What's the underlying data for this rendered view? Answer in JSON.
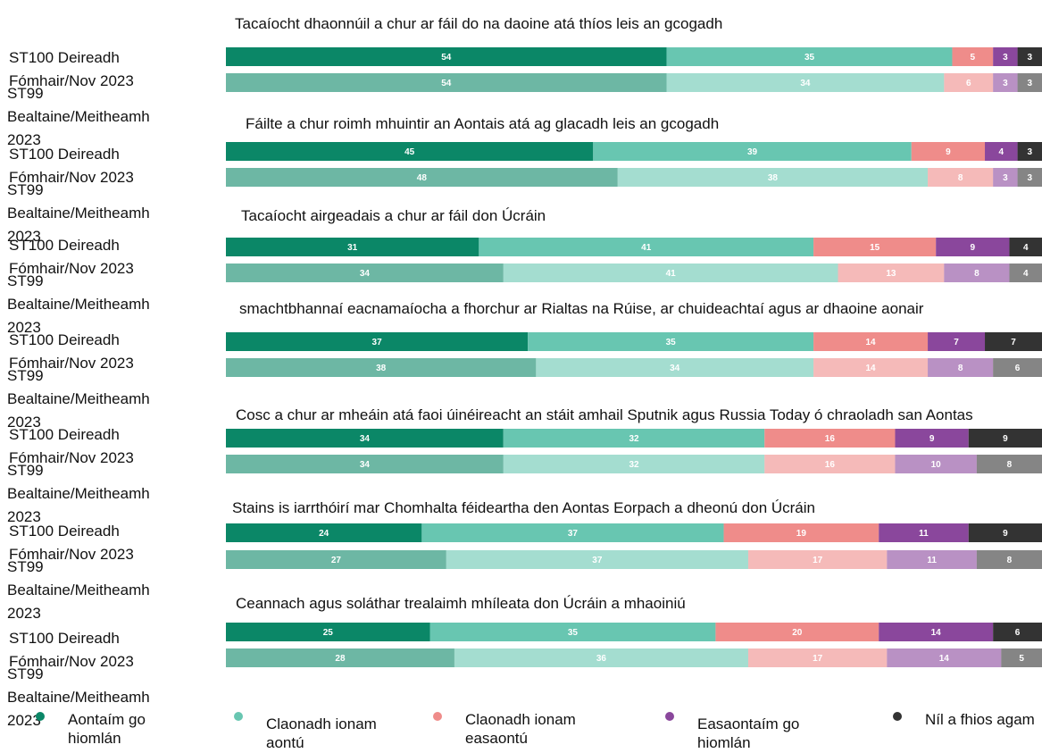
{
  "chart_data": {
    "type": "bar",
    "orientation": "horizontal",
    "stacked": true,
    "legend": "bottom",
    "xlim": [
      0,
      100
    ],
    "series": [
      {
        "name": "Aontaím go hiomlán",
        "color": "#0b8767"
      },
      {
        "name": "Claonadh ionam aontú",
        "color": "#68c6b1"
      },
      {
        "name": "Claonadh ionam easaontú",
        "color": "#ef8c8a"
      },
      {
        "name": "Easaontaím go hiomlán",
        "color": "#8a479c"
      },
      {
        "name": "Níl a fhios agam",
        "color": "#333333"
      }
    ],
    "groups": [
      {
        "title": "Tacaíocht dhaonnúil a chur ar fáil do na daoine atá thíos leis an gcogadh",
        "rows": [
          {
            "label": "ST100 Deireadh Fómhair/Nov 2023",
            "values": [
              54,
              35,
              5,
              3,
              3
            ]
          },
          {
            "label": "ST99 Bealtaine/Meitheamh 2023",
            "values": [
              54,
              34,
              6,
              3,
              3
            ]
          }
        ]
      },
      {
        "title": "Fáilte a chur roimh mhuintir an Aontais atá ag glacadh leis an gcogadh",
        "rows": [
          {
            "label": "ST100 Deireadh Fómhair/Nov 2023",
            "values": [
              45,
              39,
              9,
              4,
              3
            ]
          },
          {
            "label": "ST99 Bealtaine/Meitheamh 2023",
            "values": [
              48,
              38,
              8,
              3,
              3
            ]
          }
        ]
      },
      {
        "title": "Tacaíocht airgeadais a chur ar fáil don Úcráin",
        "rows": [
          {
            "label": "ST100 Deireadh Fómhair/Nov 2023",
            "values": [
              31,
              41,
              15,
              9,
              4
            ]
          },
          {
            "label": "ST99 Bealtaine/Meitheamh 2023",
            "values": [
              34,
              41,
              13,
              8,
              4
            ]
          }
        ]
      },
      {
        "title": "smachtbhannaí eacnamaíocha a fhorchur ar Rialtas na Rúise, ar chuideachtaí agus ar dhaoine aonair",
        "rows": [
          {
            "label": "ST100 Deireadh Fómhair/Nov 2023",
            "values": [
              37,
              35,
              14,
              7,
              7
            ]
          },
          {
            "label": "ST99 Bealtaine/Meitheamh 2023",
            "values": [
              38,
              34,
              14,
              8,
              6
            ]
          }
        ]
      },
      {
        "title": "Cosc a chur ar mheáin atá faoi úinéireacht an stáit amhail Sputnik agus Russia Today ó chraoladh san Aontas",
        "rows": [
          {
            "label": "ST100 Deireadh Fómhair/Nov 2023",
            "values": [
              34,
              32,
              16,
              9,
              9
            ]
          },
          {
            "label": "ST99 Bealtaine/Meitheamh 2023",
            "values": [
              34,
              32,
              16,
              10,
              8
            ]
          }
        ]
      },
      {
        "title": "Stains is iarrthóirí mar Chomhalta féideartha den Aontas Eorpach a dheonú don Úcráin",
        "rows": [
          {
            "label": "ST100 Deireadh Fómhair/Nov 2023",
            "values": [
              24,
              37,
              19,
              11,
              9
            ]
          },
          {
            "label": "ST99 Bealtaine/Meitheamh 2023",
            "values": [
              27,
              37,
              17,
              11,
              8
            ]
          }
        ]
      },
      {
        "title": "Ceannach agus soláthar trealaimh mhíleata don Úcráin a mhaoiniú",
        "rows": [
          {
            "label": "ST100 Deireadh Fómhair/Nov 2023",
            "values": [
              25,
              35,
              20,
              14,
              6
            ]
          },
          {
            "label": "ST99 Bealtaine/Meitheamh 2023",
            "values": [
              28,
              36,
              17,
              14,
              5
            ]
          }
        ]
      }
    ]
  }
}
